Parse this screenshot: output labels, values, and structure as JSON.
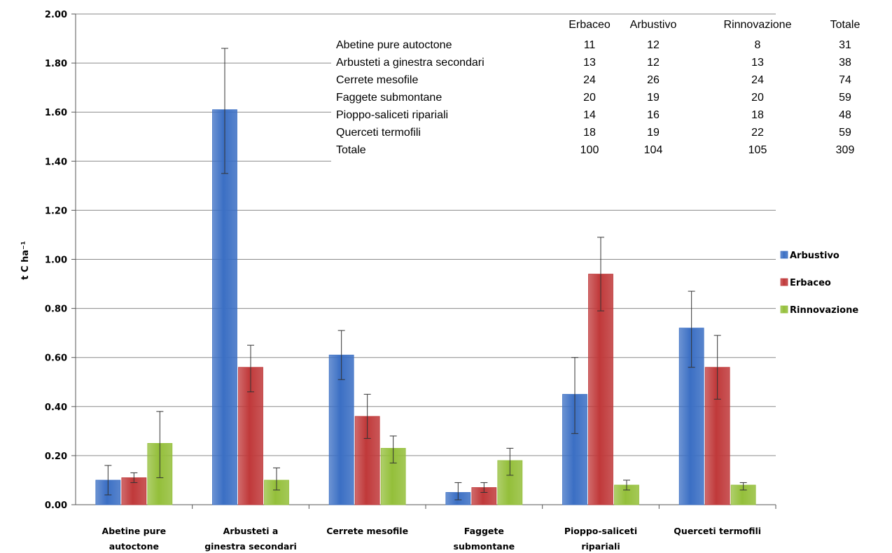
{
  "chart_data": {
    "type": "bar",
    "ylabel": "t C ha⁻¹",
    "ylim": [
      0,
      2.0
    ],
    "yticks": [
      "0.00",
      "0.20",
      "0.40",
      "0.60",
      "0.80",
      "1.00",
      "1.20",
      "1.40",
      "1.60",
      "1.80",
      "2.00"
    ],
    "categories": [
      [
        "Abetine pure",
        "autoctone"
      ],
      [
        "Arbusteti a",
        "ginestra secondari"
      ],
      [
        "Cerrete mesofile"
      ],
      [
        "Faggete",
        "submontane"
      ],
      [
        "Pioppo-saliceti",
        "ripariali"
      ],
      [
        "Querceti termofili"
      ]
    ],
    "series": [
      {
        "name": "Arbustivo",
        "color": "#3b6fc4",
        "values": [
          0.1,
          1.61,
          0.61,
          0.05,
          0.45,
          0.72
        ],
        "err_high": [
          0.16,
          1.86,
          0.71,
          0.09,
          0.6,
          0.87
        ],
        "err_low": [
          0.04,
          1.35,
          0.51,
          0.02,
          0.29,
          0.56
        ]
      },
      {
        "name": "Erbaceo",
        "color": "#c0393a",
        "values": [
          0.11,
          0.56,
          0.36,
          0.07,
          0.94,
          0.56
        ],
        "err_high": [
          0.13,
          0.65,
          0.45,
          0.09,
          1.09,
          0.69
        ],
        "err_low": [
          0.09,
          0.46,
          0.27,
          0.05,
          0.79,
          0.43
        ]
      },
      {
        "name": "Rinnovazione",
        "color": "#94bf3a",
        "values": [
          0.25,
          0.1,
          0.23,
          0.18,
          0.08,
          0.08
        ],
        "err_high": [
          0.38,
          0.15,
          0.28,
          0.23,
          0.1,
          0.09
        ],
        "err_low": [
          0.11,
          0.06,
          0.17,
          0.12,
          0.06,
          0.06
        ]
      }
    ],
    "legend_position": "right",
    "grid": true
  },
  "table": {
    "headers": [
      "Erbaceo",
      "Arbustivo",
      "Rinnovazione",
      "Totale"
    ],
    "rows": [
      {
        "label": "Abetine pure autoctone",
        "values": [
          "11",
          "12",
          "8",
          "31"
        ]
      },
      {
        "label": "Arbusteti a ginestra secondari",
        "values": [
          "13",
          "12",
          "13",
          "38"
        ]
      },
      {
        "label": "Cerrete mesofile",
        "values": [
          "24",
          "26",
          "24",
          "74"
        ]
      },
      {
        "label": "Faggete submontane",
        "values": [
          "20",
          "19",
          "20",
          "59"
        ]
      },
      {
        "label": "Pioppo-saliceti ripariali",
        "values": [
          "14",
          "16",
          "18",
          "48"
        ]
      },
      {
        "label": "Querceti termofili",
        "values": [
          "18",
          "19",
          "22",
          "59"
        ]
      },
      {
        "label": "Totale",
        "values": [
          "100",
          "104",
          "105",
          "309"
        ]
      }
    ]
  }
}
